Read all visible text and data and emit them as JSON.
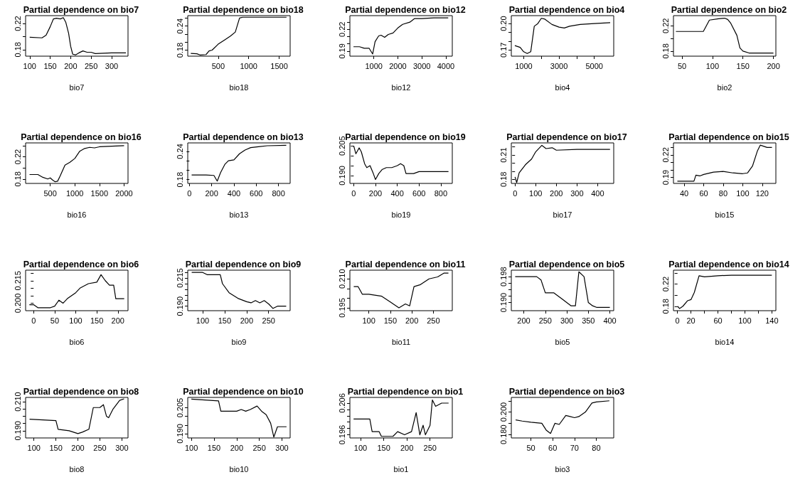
{
  "chart_data": [
    {
      "type": "line",
      "title": "Partial dependence on bio7",
      "xlabel": "bio7",
      "color": "#000000",
      "xlim": [
        90,
        340
      ],
      "xticks": [
        100,
        150,
        200,
        250,
        300
      ],
      "ylim": [
        0.17,
        0.232
      ],
      "yticks": [
        0.18,
        {
          "value": 0.2,
          "label": null
        },
        0.22
      ],
      "x": [
        100,
        130,
        140,
        150,
        158,
        165,
        175,
        182,
        188,
        195,
        200,
        205,
        212,
        220,
        230,
        240,
        250,
        260,
        300,
        335
      ],
      "values": [
        0.199,
        0.198,
        0.202,
        0.215,
        0.227,
        0.228,
        0.227,
        0.229,
        0.222,
        0.205,
        0.185,
        0.173,
        0.172,
        0.175,
        0.178,
        0.176,
        0.176,
        0.174,
        0.175,
        0.175
      ]
    },
    {
      "type": "line",
      "title": "Partial dependence on bio18",
      "xlabel": "bio18",
      "color": "#000000",
      "xlim": [
        0,
        1680
      ],
      "xticks": [
        500,
        1000,
        1500
      ],
      "ylim": [
        0.165,
        0.266
      ],
      "yticks": [
        0.18,
        {
          "value": 0.2,
          "label": null
        },
        {
          "value": 0.22,
          "label": null
        },
        0.24,
        {
          "value": 0.26,
          "label": null
        }
      ],
      "x": [
        50,
        150,
        200,
        300,
        350,
        400,
        500,
        600,
        700,
        780,
        850,
        900,
        1620
      ],
      "values": [
        0.172,
        0.171,
        0.168,
        0.169,
        0.178,
        0.18,
        0.195,
        0.205,
        0.215,
        0.225,
        0.26,
        0.262,
        0.262
      ]
    },
    {
      "type": "line",
      "title": "Partial dependence on bio12",
      "xlabel": "bio12",
      "color": "#000000",
      "xlim": [
        0,
        4270
      ],
      "xticks": [
        1000,
        2000,
        3000,
        4000
      ],
      "ylim": [
        0.183,
        0.239
      ],
      "yticks": [
        0.19,
        {
          "value": 0.2,
          "label": null
        },
        {
          "value": 0.21,
          "label": null
        },
        0.22,
        {
          "value": 0.23,
          "label": null
        }
      ],
      "x": [
        150,
        400,
        600,
        800,
        950,
        1050,
        1200,
        1300,
        1450,
        1600,
        1800,
        2000,
        2200,
        2500,
        2700,
        3000,
        3500,
        4100
      ],
      "values": [
        0.196,
        0.196,
        0.194,
        0.194,
        0.186,
        0.203,
        0.211,
        0.212,
        0.209,
        0.213,
        0.215,
        0.222,
        0.227,
        0.23,
        0.235,
        0.235,
        0.236,
        0.236
      ]
    },
    {
      "type": "line",
      "title": "Partial dependence on bio4",
      "xlabel": "bio4",
      "color": "#000000",
      "xlim": [
        300,
        6100
      ],
      "xticks": [
        1000,
        {
          "value": 2000,
          "label": null
        },
        3000,
        {
          "value": 4000,
          "label": null
        },
        5000
      ],
      "ylim": [
        0.163,
        0.209
      ],
      "yticks": [
        0.17,
        {
          "value": 0.18,
          "label": null
        },
        {
          "value": 0.19,
          "label": null
        },
        {
          "value": 0.2,
          "label": "0.20"
        }
      ],
      "x": [
        500,
        800,
        1000,
        1200,
        1400,
        1600,
        1800,
        2000,
        2200,
        2600,
        3000,
        3300,
        3600,
        4200,
        5000,
        5900
      ],
      "values": [
        0.175,
        0.173,
        0.168,
        0.166,
        0.168,
        0.197,
        0.2,
        0.206,
        0.205,
        0.199,
        0.196,
        0.195,
        0.197,
        0.199,
        0.2,
        0.201
      ]
    },
    {
      "type": "line",
      "title": "Partial dependence on bio2",
      "xlabel": "bio2",
      "color": "#000000",
      "xlim": [
        36,
        204
      ],
      "xticks": [
        50,
        100,
        150,
        200
      ],
      "ylim": [
        0.172,
        0.236
      ],
      "yticks": [
        0.18,
        {
          "value": 0.2,
          "label": null
        },
        0.22
      ],
      "x": [
        40,
        85,
        90,
        95,
        110,
        120,
        125,
        130,
        140,
        145,
        150,
        160,
        200
      ],
      "values": [
        0.211,
        0.211,
        0.22,
        0.229,
        0.231,
        0.232,
        0.23,
        0.224,
        0.205,
        0.185,
        0.18,
        0.177,
        0.177
      ]
    },
    {
      "type": "line",
      "title": "Partial dependence on bio16",
      "xlabel": "bio16",
      "color": "#000000",
      "xlim": [
        0,
        2080
      ],
      "xticks": [
        500,
        1000,
        1500,
        2000
      ],
      "ylim": [
        0.172,
        0.245
      ],
      "yticks": [
        0.18,
        {
          "value": 0.2,
          "label": null
        },
        0.22,
        {
          "value": 0.24,
          "label": null
        }
      ],
      "x": [
        80,
        250,
        350,
        450,
        500,
        550,
        600,
        650,
        700,
        800,
        900,
        1000,
        1100,
        1200,
        1300,
        1400,
        1500,
        2000
      ],
      "values": [
        0.188,
        0.188,
        0.183,
        0.18,
        0.182,
        0.178,
        0.175,
        0.176,
        0.185,
        0.205,
        0.21,
        0.217,
        0.23,
        0.235,
        0.237,
        0.236,
        0.238,
        0.24
      ]
    },
    {
      "type": "line",
      "title": "Partial dependence on bio13",
      "xlabel": "bio13",
      "color": "#000000",
      "xlim": [
        -15,
        905
      ],
      "xticks": [
        0,
        200,
        400,
        600,
        800
      ],
      "ylim": [
        0.172,
        0.258
      ],
      "yticks": [
        0.18,
        {
          "value": 0.2,
          "label": null
        },
        {
          "value": 0.22,
          "label": null
        },
        0.24
      ],
      "x": [
        20,
        150,
        220,
        250,
        280,
        320,
        350,
        400,
        450,
        500,
        550,
        620,
        700,
        870
      ],
      "values": [
        0.19,
        0.19,
        0.189,
        0.177,
        0.195,
        0.213,
        0.22,
        0.222,
        0.235,
        0.243,
        0.248,
        0.25,
        0.252,
        0.253
      ]
    },
    {
      "type": "line",
      "title": "Partial dependence on bio19",
      "xlabel": "bio19",
      "color": "#000000",
      "xlim": [
        -35,
        905
      ],
      "xticks": [
        0,
        200,
        400,
        600,
        800
      ],
      "ylim": [
        0.186,
        0.2065
      ],
      "yticks": [
        {
          "value": 0.19,
          "label": "0.190"
        },
        {
          "value": 0.195,
          "label": null
        },
        {
          "value": 0.2,
          "label": null
        },
        0.205
      ],
      "x": [
        0,
        20,
        50,
        70,
        100,
        120,
        150,
        180,
        200,
        230,
        260,
        300,
        350,
        400,
        430,
        460,
        480,
        550,
        600,
        870
      ],
      "values": [
        0.205,
        0.201,
        0.204,
        0.202,
        0.196,
        0.194,
        0.195,
        0.191,
        0.188,
        0.191,
        0.193,
        0.194,
        0.194,
        0.195,
        0.196,
        0.195,
        0.191,
        0.191,
        0.192,
        0.192
      ]
    },
    {
      "type": "line",
      "title": "Partial dependence on bio17",
      "xlabel": "bio17",
      "color": "#000000",
      "xlim": [
        -18,
        478
      ],
      "xticks": [
        0,
        100,
        200,
        300,
        400
      ],
      "ylim": [
        0.175,
        0.225
      ],
      "yticks": [
        0.18,
        {
          "value": 0.19,
          "label": null
        },
        {
          "value": 0.2,
          "label": null
        },
        0.21,
        {
          "value": 0.22,
          "label": null
        }
      ],
      "x": [
        0,
        8,
        20,
        50,
        80,
        100,
        130,
        150,
        180,
        200,
        300,
        460
      ],
      "values": [
        0.183,
        0.176,
        0.188,
        0.198,
        0.205,
        0.214,
        0.222,
        0.218,
        0.219,
        0.216,
        0.217,
        0.217
      ]
    },
    {
      "type": "line",
      "title": "Partial dependence on bio15",
      "xlabel": "bio15",
      "color": "#000000",
      "xlim": [
        29,
        134
      ],
      "xticks": [
        40,
        60,
        80,
        100,
        120
      ],
      "ylim": [
        0.182,
        0.236
      ],
      "yticks": [
        0.19,
        {
          "value": 0.2,
          "label": null
        },
        {
          "value": 0.21,
          "label": null
        },
        0.22,
        {
          "value": 0.23,
          "label": null
        }
      ],
      "x": [
        33,
        50,
        52,
        56,
        60,
        70,
        80,
        90,
        100,
        105,
        110,
        115,
        118,
        125,
        130
      ],
      "values": [
        0.185,
        0.185,
        0.193,
        0.192,
        0.194,
        0.197,
        0.198,
        0.196,
        0.195,
        0.196,
        0.205,
        0.225,
        0.233,
        0.23,
        0.23
      ]
    },
    {
      "type": "line",
      "title": "Partial dependence on bio6",
      "xlabel": "bio6",
      "color": "#000000",
      "xlim": [
        -19,
        224
      ],
      "xticks": [
        0,
        50,
        100,
        150,
        200
      ],
      "ylim": [
        0.195,
        0.222
      ],
      "yticks": [
        {
          "value": 0.2,
          "label": "0.200"
        },
        {
          "value": 0.205,
          "label": null
        },
        {
          "value": 0.21,
          "label": null
        },
        0.215,
        {
          "value": 0.22,
          "label": null
        }
      ],
      "x": [
        -10,
        0,
        10,
        40,
        50,
        60,
        70,
        80,
        100,
        110,
        130,
        150,
        160,
        170,
        180,
        190,
        195,
        215
      ],
      "values": [
        0.199,
        0.199,
        0.197,
        0.197,
        0.198,
        0.202,
        0.2,
        0.203,
        0.207,
        0.21,
        0.213,
        0.214,
        0.219,
        0.215,
        0.212,
        0.212,
        0.203,
        0.203
      ]
    },
    {
      "type": "line",
      "title": "Partial dependence on bio9",
      "xlabel": "bio9",
      "color": "#000000",
      "xlim": [
        66,
        299
      ],
      "xticks": [
        100,
        150,
        200,
        250
      ],
      "ylim": [
        0.186,
        0.222
      ],
      "yticks": [
        {
          "value": 0.19,
          "label": "0.190"
        },
        {
          "value": 0.195,
          "label": null
        },
        {
          "value": 0.2,
          "label": null
        },
        {
          "value": 0.205,
          "label": null
        },
        {
          "value": 0.21,
          "label": null
        },
        0.215,
        {
          "value": 0.22,
          "label": null
        }
      ],
      "x": [
        75,
        100,
        110,
        140,
        145,
        160,
        180,
        200,
        210,
        220,
        230,
        240,
        250,
        260,
        270,
        290
      ],
      "values": [
        0.22,
        0.22,
        0.218,
        0.218,
        0.21,
        0.202,
        0.197,
        0.194,
        0.193,
        0.195,
        0.193,
        0.195,
        0.192,
        0.188,
        0.19,
        0.19
      ]
    },
    {
      "type": "line",
      "title": "Partial dependence on bio11",
      "xlabel": "bio11",
      "color": "#000000",
      "xlim": [
        56,
        294
      ],
      "xticks": [
        100,
        150,
        200,
        250
      ],
      "ylim": [
        0.1935,
        0.2145
      ],
      "yticks": [
        0.195,
        {
          "value": 0.2,
          "label": null
        },
        {
          "value": 0.205,
          "label": null
        },
        {
          "value": 0.21,
          "label": "0.210"
        }
      ],
      "x": [
        65,
        75,
        85,
        100,
        130,
        150,
        170,
        185,
        195,
        205,
        220,
        240,
        260,
        275,
        285
      ],
      "values": [
        0.206,
        0.206,
        0.202,
        0.202,
        0.201,
        0.198,
        0.195,
        0.197,
        0.196,
        0.206,
        0.207,
        0.21,
        0.211,
        0.213,
        0.213
      ]
    },
    {
      "type": "line",
      "title": "Partial dependence on bio5",
      "xlabel": "bio5",
      "color": "#000000",
      "xlim": [
        171,
        409
      ],
      "xticks": [
        200,
        250,
        300,
        350,
        400
      ],
      "ylim": [
        0.1875,
        0.2
      ],
      "yticks": [
        {
          "value": 0.19,
          "label": "0.190"
        },
        {
          "value": 0.192,
          "label": null
        },
        {
          "value": 0.194,
          "label": null
        },
        {
          "value": 0.196,
          "label": null
        },
        0.198
      ],
      "x": [
        180,
        230,
        240,
        250,
        270,
        290,
        310,
        320,
        328,
        340,
        350,
        360,
        370,
        400
      ],
      "values": [
        0.198,
        0.198,
        0.197,
        0.193,
        0.193,
        0.191,
        0.189,
        0.189,
        0.1995,
        0.198,
        0.19,
        0.189,
        0.1885,
        0.1885
      ]
    },
    {
      "type": "line",
      "title": "Partial dependence on bio14",
      "xlabel": "bio14",
      "color": "#000000",
      "xlim": [
        -6,
        146
      ],
      "xticks": [
        0,
        20,
        {
          "value": 40,
          "label": null
        },
        60,
        {
          "value": 80,
          "label": null
        },
        100,
        {
          "value": 120,
          "label": null
        },
        140
      ],
      "ylim": [
        0.172,
        0.245
      ],
      "yticks": [
        0.18,
        {
          "value": 0.2,
          "label": null
        },
        0.22,
        {
          "value": 0.24,
          "label": null
        }
      ],
      "x": [
        0,
        3,
        8,
        15,
        20,
        25,
        32,
        40,
        60,
        80,
        140
      ],
      "values": [
        0.18,
        0.176,
        0.18,
        0.19,
        0.192,
        0.205,
        0.235,
        0.233,
        0.235,
        0.236,
        0.236
      ]
    },
    {
      "type": "line",
      "title": "Partial dependence on bio8",
      "xlabel": "bio8",
      "color": "#000000",
      "xlim": [
        81,
        314
      ],
      "xticks": [
        100,
        150,
        200,
        250,
        300
      ],
      "ylim": [
        0.185,
        0.213
      ],
      "yticks": [
        {
          "value": 0.19,
          "label": "0.190"
        },
        {
          "value": 0.195,
          "label": null
        },
        {
          "value": 0.2,
          "label": null
        },
        {
          "value": 0.205,
          "label": null
        },
        {
          "value": 0.21,
          "label": "0.210"
        }
      ],
      "x": [
        90,
        150,
        155,
        180,
        200,
        210,
        225,
        235,
        250,
        258,
        265,
        270,
        280,
        295,
        305
      ],
      "values": [
        0.198,
        0.197,
        0.191,
        0.19,
        0.188,
        0.189,
        0.191,
        0.206,
        0.206,
        0.208,
        0.2,
        0.199,
        0.205,
        0.211,
        0.212
      ]
    },
    {
      "type": "line",
      "title": "Partial dependence on bio10",
      "xlabel": "bio10",
      "color": "#000000",
      "xlim": [
        92,
        318
      ],
      "xticks": [
        100,
        150,
        200,
        250,
        300
      ],
      "ylim": [
        0.1875,
        0.211
      ],
      "yticks": [
        {
          "value": 0.19,
          "label": "0.190"
        },
        {
          "value": 0.195,
          "label": null
        },
        {
          "value": 0.2,
          "label": null
        },
        0.205
      ],
      "x": [
        100,
        160,
        165,
        180,
        200,
        210,
        220,
        230,
        245,
        255,
        265,
        275,
        282,
        290,
        310
      ],
      "values": [
        0.21,
        0.209,
        0.203,
        0.203,
        0.203,
        0.204,
        0.203,
        0.204,
        0.206,
        0.203,
        0.201,
        0.196,
        0.188,
        0.194,
        0.194
      ]
    },
    {
      "type": "line",
      "title": "Partial dependence on bio1",
      "xlabel": "bio1",
      "color": "#000000",
      "xlim": [
        77,
        298
      ],
      "xticks": [
        100,
        150,
        200,
        250
      ],
      "ylim": [
        0.195,
        0.2078
      ],
      "yticks": [
        0.196,
        {
          "value": 0.198,
          "label": null
        },
        {
          "value": 0.2,
          "label": null
        },
        {
          "value": 0.202,
          "label": null
        },
        {
          "value": 0.204,
          "label": null
        },
        0.206
      ],
      "x": [
        85,
        120,
        125,
        140,
        145,
        170,
        180,
        195,
        210,
        220,
        228,
        235,
        240,
        250,
        255,
        262,
        275,
        290
      ],
      "values": [
        0.201,
        0.201,
        0.197,
        0.197,
        0.1955,
        0.1955,
        0.197,
        0.196,
        0.197,
        0.203,
        0.196,
        0.199,
        0.196,
        0.199,
        0.207,
        0.205,
        0.206,
        0.206
      ]
    },
    {
      "type": "line",
      "title": "Partial dependence on bio3",
      "xlabel": "bio3",
      "color": "#000000",
      "xlim": [
        41,
        88
      ],
      "xticks": [
        50,
        60,
        70,
        80
      ],
      "ylim": [
        0.177,
        0.213
      ],
      "yticks": [
        {
          "value": 0.18,
          "label": "0.180"
        },
        {
          "value": 0.19,
          "label": null
        },
        {
          "value": 0.2,
          "label": "0.200"
        },
        {
          "value": 0.21,
          "label": null
        }
      ],
      "x": [
        43,
        46,
        50,
        55,
        57,
        59,
        61,
        63,
        66,
        68,
        70,
        72,
        75,
        78,
        80,
        86
      ],
      "values": [
        0.193,
        0.192,
        0.191,
        0.19,
        0.184,
        0.181,
        0.19,
        0.189,
        0.197,
        0.196,
        0.195,
        0.196,
        0.2,
        0.208,
        0.209,
        0.21
      ]
    }
  ]
}
